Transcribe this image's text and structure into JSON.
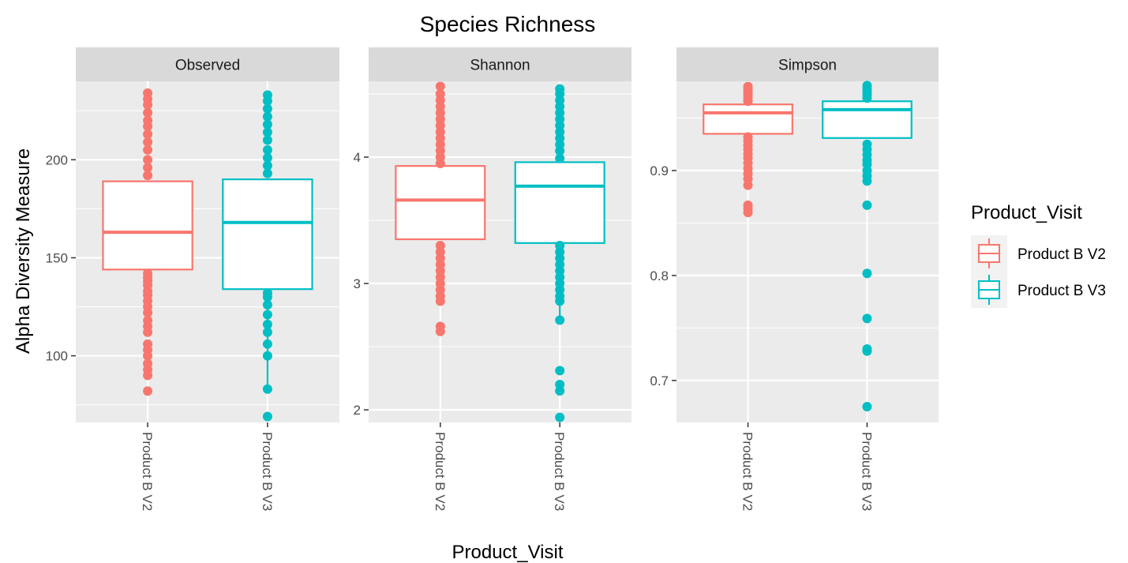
{
  "chart_data": {
    "type": "box",
    "title": "Species Richness",
    "xlabel": "Product_Visit",
    "ylabel": "Alpha Diversity Measure",
    "categories": [
      "Product B V2",
      "Product B V3"
    ],
    "legend": {
      "title": "Product_Visit",
      "position": "right",
      "entries": [
        {
          "label": "Product B V2",
          "color": "#F8766D"
        },
        {
          "label": "Product B V3",
          "color": "#00BFC4"
        }
      ]
    },
    "grid": true,
    "panels": [
      {
        "name": "Observed",
        "ylim": [
          66,
          240
        ],
        "yticks": [
          100,
          150,
          200
        ],
        "minor_ticks": [
          75,
          125,
          175,
          225
        ],
        "series": [
          {
            "name": "Product B V2",
            "q1": 144,
            "median": 163,
            "q3": 189,
            "whisker_low": 144,
            "whisker_high": 189,
            "outliers": [
              82,
              90,
              93,
              96,
              100,
              103,
              106,
              112,
              115,
              118,
              122,
              125,
              128,
              131,
              133,
              136,
              138,
              140,
              142,
              192,
              196,
              200,
              205,
              209,
              213,
              217,
              220,
              224,
              228,
              231,
              234
            ]
          },
          {
            "name": "Product B V3",
            "q1": 134,
            "median": 168,
            "q3": 190,
            "whisker_low": 84,
            "whisker_high": 190,
            "outliers": [
              69,
              83,
              100,
              106,
              112,
              116,
              121,
              126,
              130,
              132,
              193,
              197,
              201,
              205,
              210,
              214,
              218,
              222,
              226,
              230,
              233
            ]
          }
        ]
      },
      {
        "name": "Shannon",
        "ylim": [
          1.9,
          4.6
        ],
        "yticks": [
          2,
          3,
          4
        ],
        "ytick_labels": [
          "2",
          "3",
          "4"
        ],
        "minor_ticks": [
          2.5,
          3.5,
          4.5
        ],
        "series": [
          {
            "name": "Product B V2",
            "q1": 3.35,
            "median": 3.66,
            "q3": 3.93,
            "whisker_low": 3.35,
            "whisker_high": 3.93,
            "outliers": [
              2.62,
              2.66,
              2.86,
              2.9,
              2.95,
              3.0,
              3.05,
              3.1,
              3.15,
              3.2,
              3.25,
              3.3,
              3.95,
              4.0,
              4.05,
              4.1,
              4.15,
              4.2,
              4.25,
              4.3,
              4.35,
              4.4,
              4.45,
              4.5,
              4.56
            ]
          },
          {
            "name": "Product B V3",
            "q1": 3.32,
            "median": 3.77,
            "q3": 3.96,
            "whisker_low": 2.71,
            "whisker_high": 3.96,
            "outliers": [
              1.94,
              2.15,
              2.2,
              2.31,
              2.71,
              2.86,
              2.9,
              2.95,
              3.0,
              3.05,
              3.1,
              3.15,
              3.2,
              3.25,
              3.3,
              3.99,
              4.05,
              4.1,
              4.15,
              4.2,
              4.25,
              4.3,
              4.35,
              4.4,
              4.45,
              4.5,
              4.54
            ]
          }
        ]
      },
      {
        "name": "Simpson",
        "ylim": [
          0.66,
          0.985
        ],
        "yticks": [
          0.7,
          0.8,
          0.9
        ],
        "ytick_labels": [
          "0.7",
          "0.8",
          "0.9"
        ],
        "minor_ticks": [
          0.75,
          0.85,
          0.95
        ],
        "series": [
          {
            "name": "Product B V2",
            "q1": 0.935,
            "median": 0.955,
            "q3": 0.963,
            "whisker_low": 0.935,
            "whisker_high": 0.963,
            "outliers": [
              0.86,
              0.864,
              0.867,
              0.886,
              0.892,
              0.897,
              0.902,
              0.907,
              0.912,
              0.916,
              0.92,
              0.924,
              0.928,
              0.932,
              0.966,
              0.969,
              0.972,
              0.975,
              0.978,
              0.98
            ]
          },
          {
            "name": "Product B V3",
            "q1": 0.931,
            "median": 0.958,
            "q3": 0.966,
            "whisker_low": 0.931,
            "whisker_high": 0.966,
            "outliers": [
              0.675,
              0.728,
              0.73,
              0.759,
              0.802,
              0.867,
              0.89,
              0.895,
              0.9,
              0.906,
              0.91,
              0.915,
              0.92,
              0.925,
              0.969,
              0.972,
              0.975,
              0.978,
              0.981
            ]
          }
        ]
      }
    ]
  }
}
